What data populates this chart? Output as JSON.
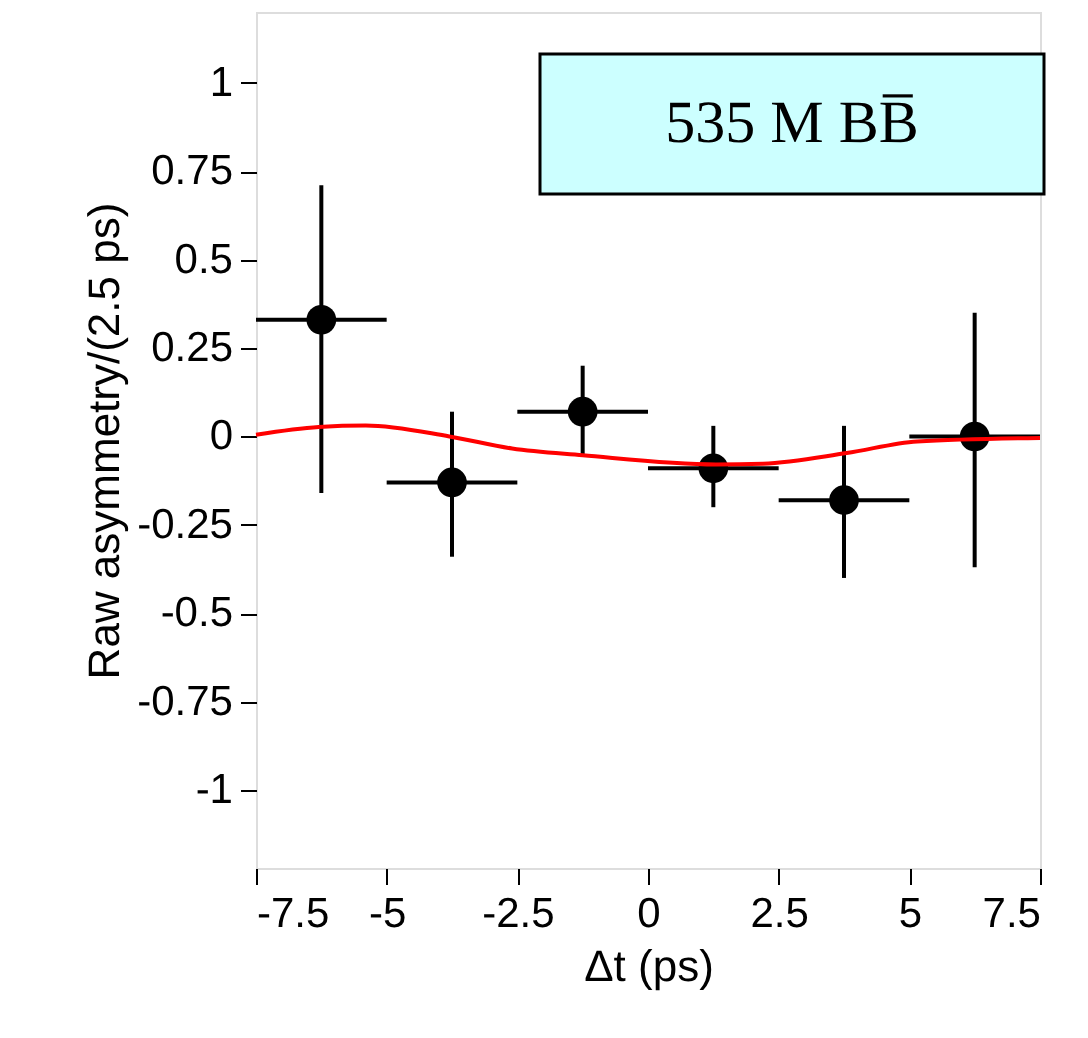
{
  "chart_data": {
    "type": "scatter",
    "xlabel": "Δt (ps)",
    "ylabel": "Raw asymmetry/(2.5 ps)",
    "annotations": [
      "535 M BB̅"
    ],
    "xlim": [
      -7.5,
      7.5
    ],
    "xticks": [
      -7.5,
      -5,
      -2.5,
      0,
      2.5,
      5,
      7.5
    ],
    "ylim": [
      -1.22,
      1.2
    ],
    "yticks": [
      -1,
      -0.75,
      -0.5,
      -0.25,
      0,
      0.25,
      0.5,
      0.75,
      1
    ],
    "grid": false,
    "series": [
      {
        "type": "scatter",
        "color": "#000000",
        "marker": "circle",
        "x": [
          -6.25,
          -3.75,
          -1.25,
          1.25,
          3.75,
          6.25
        ],
        "values": [
          0.33,
          -0.13,
          0.07,
          -0.09,
          -0.18,
          0.0
        ],
        "errors": [
          [
            -0.16,
            0.71
          ],
          [
            -0.34,
            0.07
          ],
          [
            -0.05,
            0.2
          ],
          [
            -0.2,
            0.03
          ],
          [
            -0.4,
            0.03
          ],
          [
            -0.37,
            0.35
          ]
        ],
        "xerrors": [
          1.25,
          1.25,
          1.25,
          1.25,
          1.25,
          1.25
        ]
      },
      {
        "type": "line",
        "color": "#ff0000",
        "x": [
          -7.5,
          -6.3,
          -5.4,
          -3.8,
          -2.6,
          -1.25,
          1.3,
          2.2,
          3.8,
          5.15,
          7.5
        ],
        "values": [
          0.005,
          0.027,
          0.031,
          0.0,
          -0.034,
          -0.053,
          -0.079,
          -0.077,
          -0.047,
          -0.014,
          -0.004
        ]
      }
    ]
  }
}
